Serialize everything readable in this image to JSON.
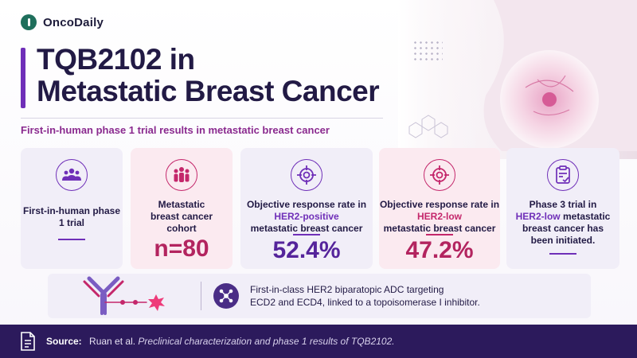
{
  "brand": {
    "name": "OncoDaily",
    "color": "#1f6f5c"
  },
  "title": {
    "line1": "TQB2102 in",
    "line2": "Metastatic Breast Cancer"
  },
  "subtitle": "First-in-human phase 1 trial results in metastatic breast cancer",
  "colors": {
    "purple": "#6f2fb8",
    "pink": "#c4276b",
    "navy": "#2c1a5c"
  },
  "cards": [
    {
      "icon": "users-icon",
      "label": "First-in-human phase 1 trial"
    },
    {
      "icon": "group-icon",
      "label": "Metastatic breast cancer cohort",
      "value": "n=80"
    },
    {
      "icon": "target-icon",
      "label_pre": "Objective response rate in",
      "label_hl": "HER2-positive",
      "label_post": "metastatic breast cancer",
      "value": "52.4%"
    },
    {
      "icon": "target-icon",
      "label_pre": "Objective response rate in",
      "label_hl": "HER2-low",
      "label_post": "metastatic breast cancer",
      "value": "47.2%"
    },
    {
      "icon": "clipboard-check-icon",
      "label_pre": "Phase 3 trial in",
      "label_hl": "HER2-low",
      "label_post": "metastatic breast cancer has been initiated."
    }
  ],
  "drug": {
    "line1": "First-in-class HER2 biparatopic ADC targeting",
    "line2": "ECD2 and ECD4, linked to a topoisomerase I inhibitor."
  },
  "footer": {
    "source_label": "Source:",
    "author": "Ruan et al.",
    "reference": "Preclinical characterization and phase 1 results of TQB2102."
  }
}
